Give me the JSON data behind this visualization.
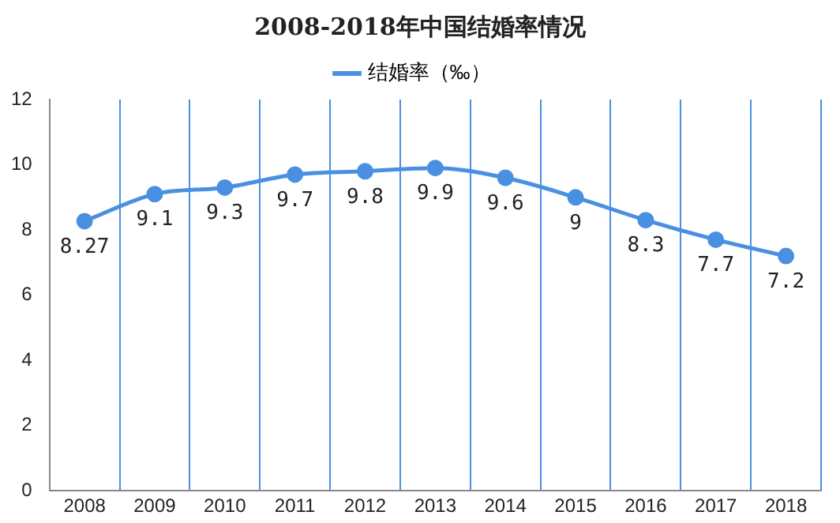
{
  "chart_data": {
    "type": "line",
    "title": "2008-2018年中国结婚率情况",
    "categories": [
      "2008",
      "2009",
      "2010",
      "2011",
      "2012",
      "2013",
      "2014",
      "2015",
      "2016",
      "2017",
      "2018"
    ],
    "series": [
      {
        "name": "结婚率（‰）",
        "color": "#4a90e2",
        "values": [
          8.27,
          9.1,
          9.3,
          9.7,
          9.8,
          9.9,
          9.6,
          9,
          8.3,
          7.7,
          7.2
        ]
      }
    ],
    "ylim": [
      0,
      12
    ],
    "yticks": [
      0,
      2,
      4,
      6,
      8,
      10,
      12
    ],
    "grid": "x",
    "legend": "top",
    "marker": "circle",
    "line_style": "solid",
    "data_labels": true
  }
}
